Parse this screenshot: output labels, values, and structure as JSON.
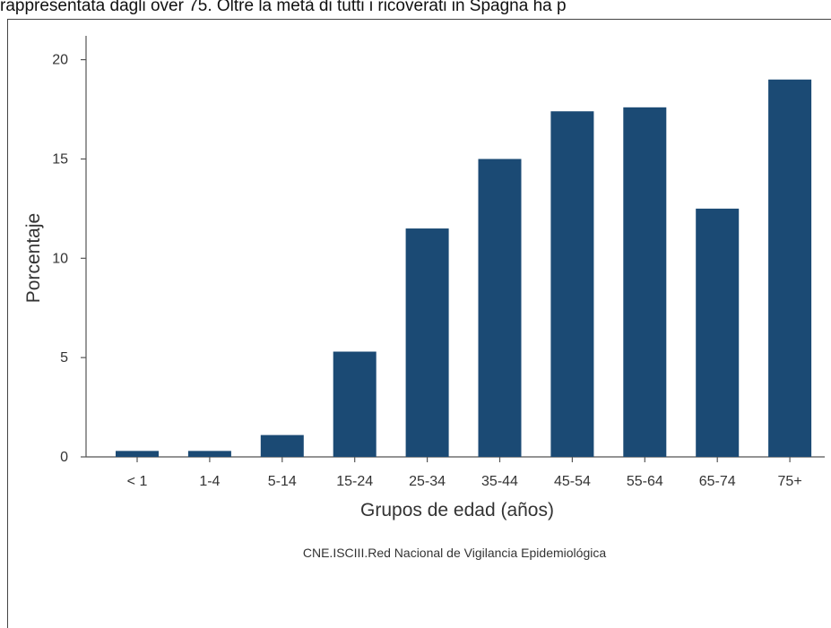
{
  "page": {
    "top_caption": "rappresentata dagli over 75. Oltre la metà di tutti i ricoverati in Spagna ha p"
  },
  "chart_data": {
    "type": "bar",
    "categories": [
      "< 1",
      "1-4",
      "5-14",
      "15-24",
      "25-34",
      "35-44",
      "45-54",
      "55-64",
      "65-74",
      "75+"
    ],
    "values": [
      0.3,
      0.3,
      1.1,
      5.3,
      11.5,
      15.0,
      17.4,
      17.6,
      12.5,
      19.0
    ],
    "title": "",
    "xlabel": "Grupos de edad (años)",
    "ylabel": "Porcentaje",
    "ylim": [
      0,
      21.2
    ],
    "yticks": [
      0,
      5,
      10,
      15,
      20
    ],
    "bar_color": "#1b4a74",
    "grid": false,
    "legend": "none",
    "source": "CNE.ISCIII.Red Nacional de Vigilancia Epidemiológica"
  }
}
